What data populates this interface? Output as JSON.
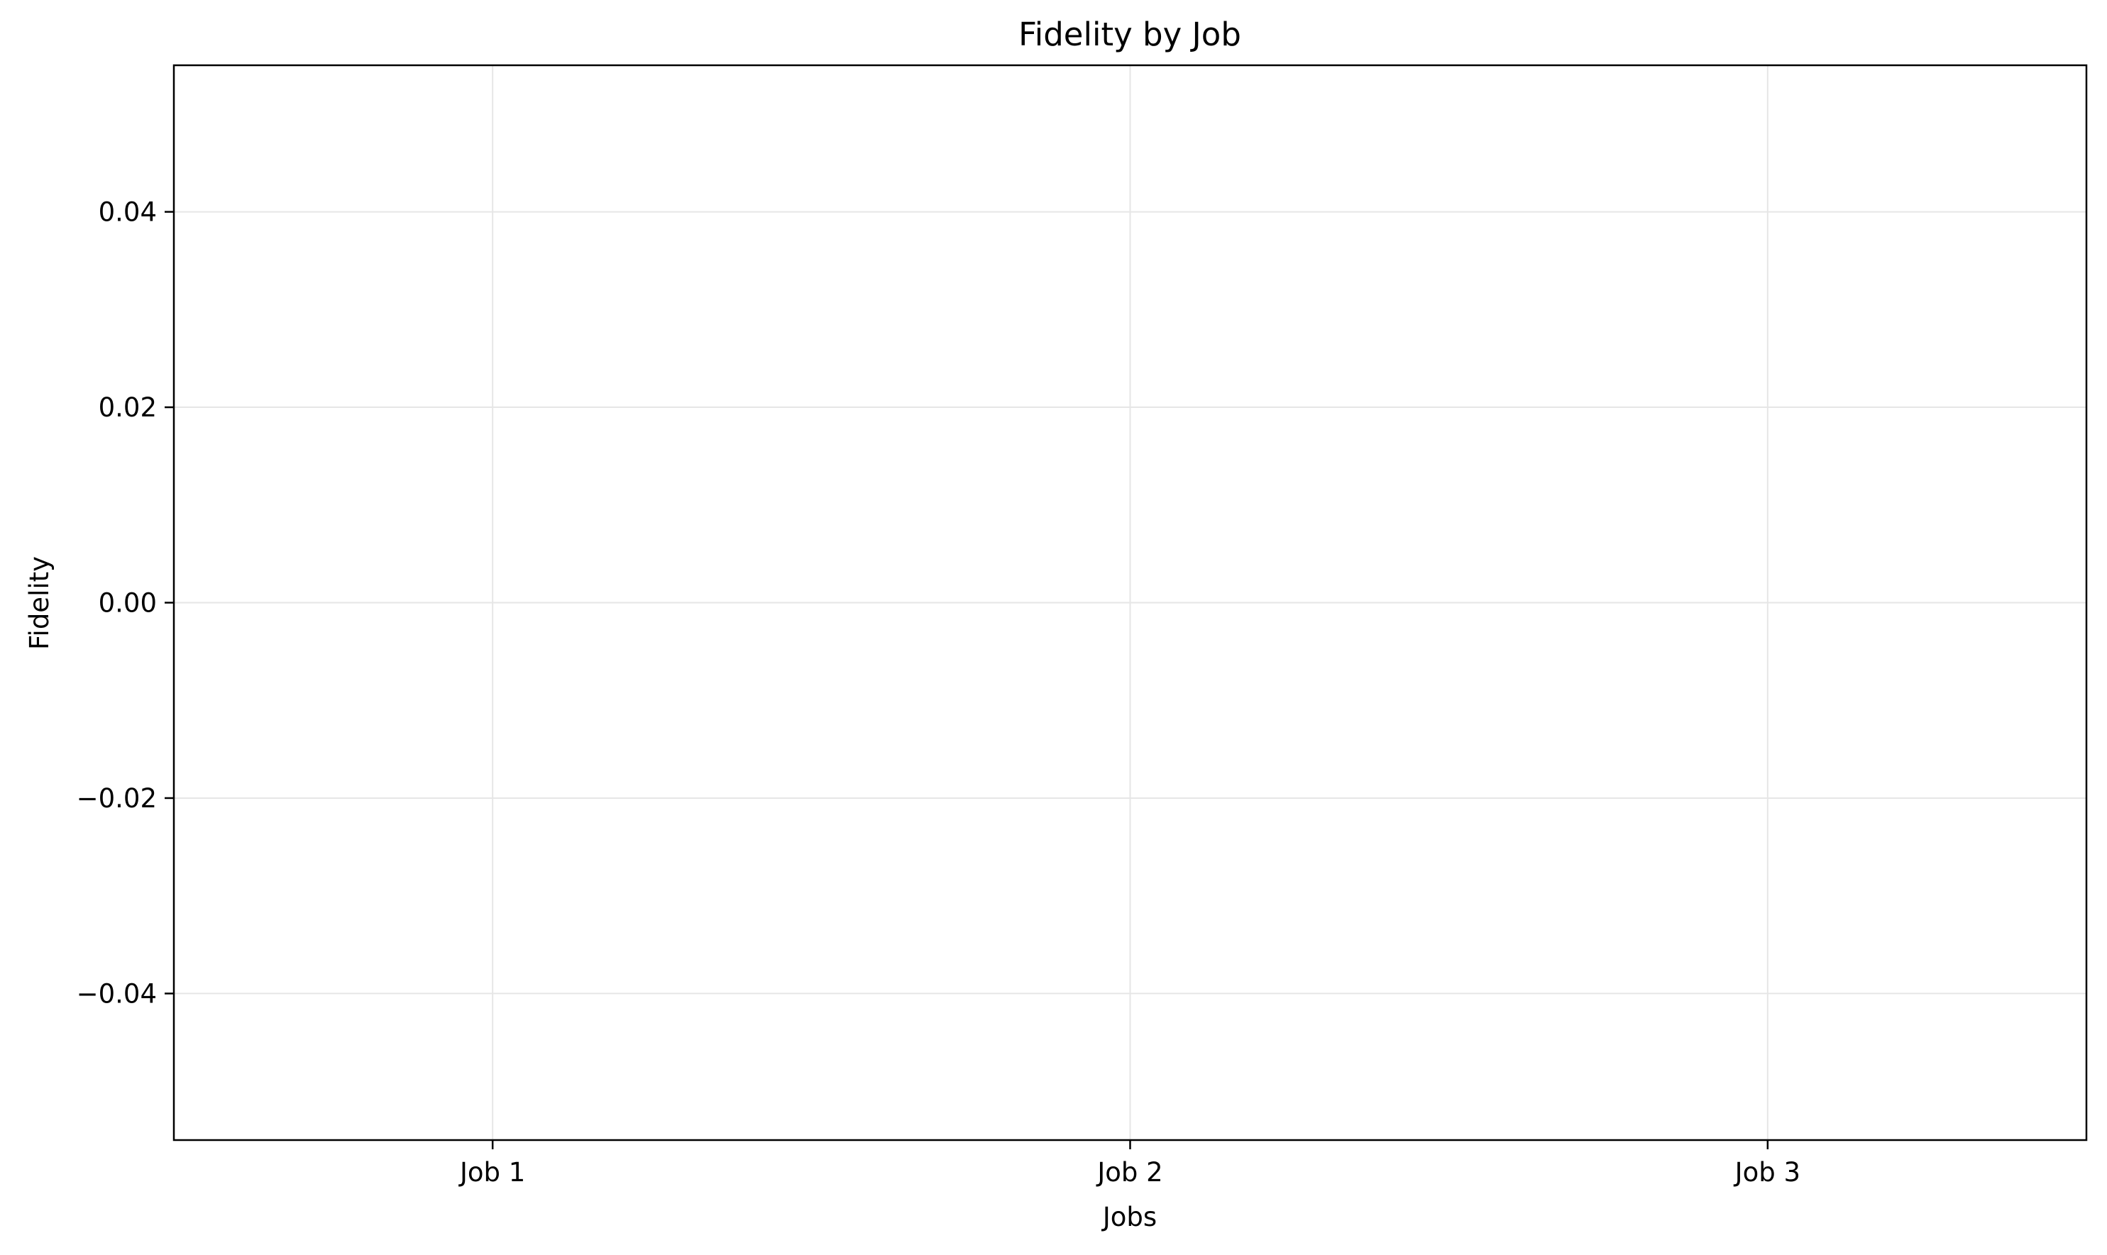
{
  "chart_data": {
    "type": "line",
    "title": "Fidelity by Job",
    "xlabel": "Jobs",
    "ylabel": "Fidelity",
    "categories": [
      "Job 1",
      "Job 2",
      "Job 3"
    ],
    "series": [],
    "ylim": [
      -0.055,
      0.055
    ],
    "yticks": [
      -0.04,
      -0.02,
      0.0,
      0.02,
      0.04
    ],
    "ytick_labels": [
      "−0.04",
      "−0.02",
      "0.00",
      "0.02",
      "0.04"
    ],
    "grid": true,
    "legend": "none",
    "colors": {
      "grid": "#e6e6e6",
      "axes": "#000000",
      "background": "#ffffff"
    }
  }
}
